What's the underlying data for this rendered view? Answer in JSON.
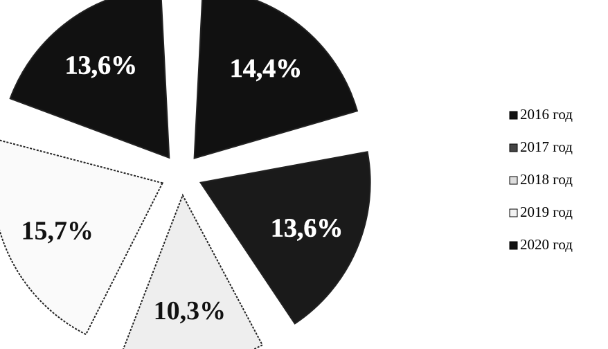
{
  "chart_data": {
    "type": "pie",
    "slices": [
      {
        "label": "2016 год",
        "value": 14.4,
        "value_label": "14,4%",
        "color": "#111111",
        "label_color": "#ffffff",
        "legend_marker": "#111111"
      },
      {
        "label": "2017 год",
        "value": 13.6,
        "value_label": "13,6%",
        "color": "#1a1a1a",
        "label_color": "#ffffff",
        "legend_marker": "#444444"
      },
      {
        "label": "2018 год",
        "value": 10.3,
        "value_label": "10,3%",
        "color": "#eeeeee",
        "label_color": "#111111",
        "legend_marker": "#dddddd"
      },
      {
        "label": "2019 год",
        "value": 15.7,
        "value_label": "15,7%",
        "color": "#fafafa",
        "label_color": "#111111",
        "legend_marker": "#f2f2f2"
      },
      {
        "label": "2020 год",
        "value": 13.6,
        "value_label": "13,6%",
        "color": "#111111",
        "label_color": "#ffffff",
        "legend_marker": "#111111"
      }
    ],
    "legend_position": "right"
  }
}
